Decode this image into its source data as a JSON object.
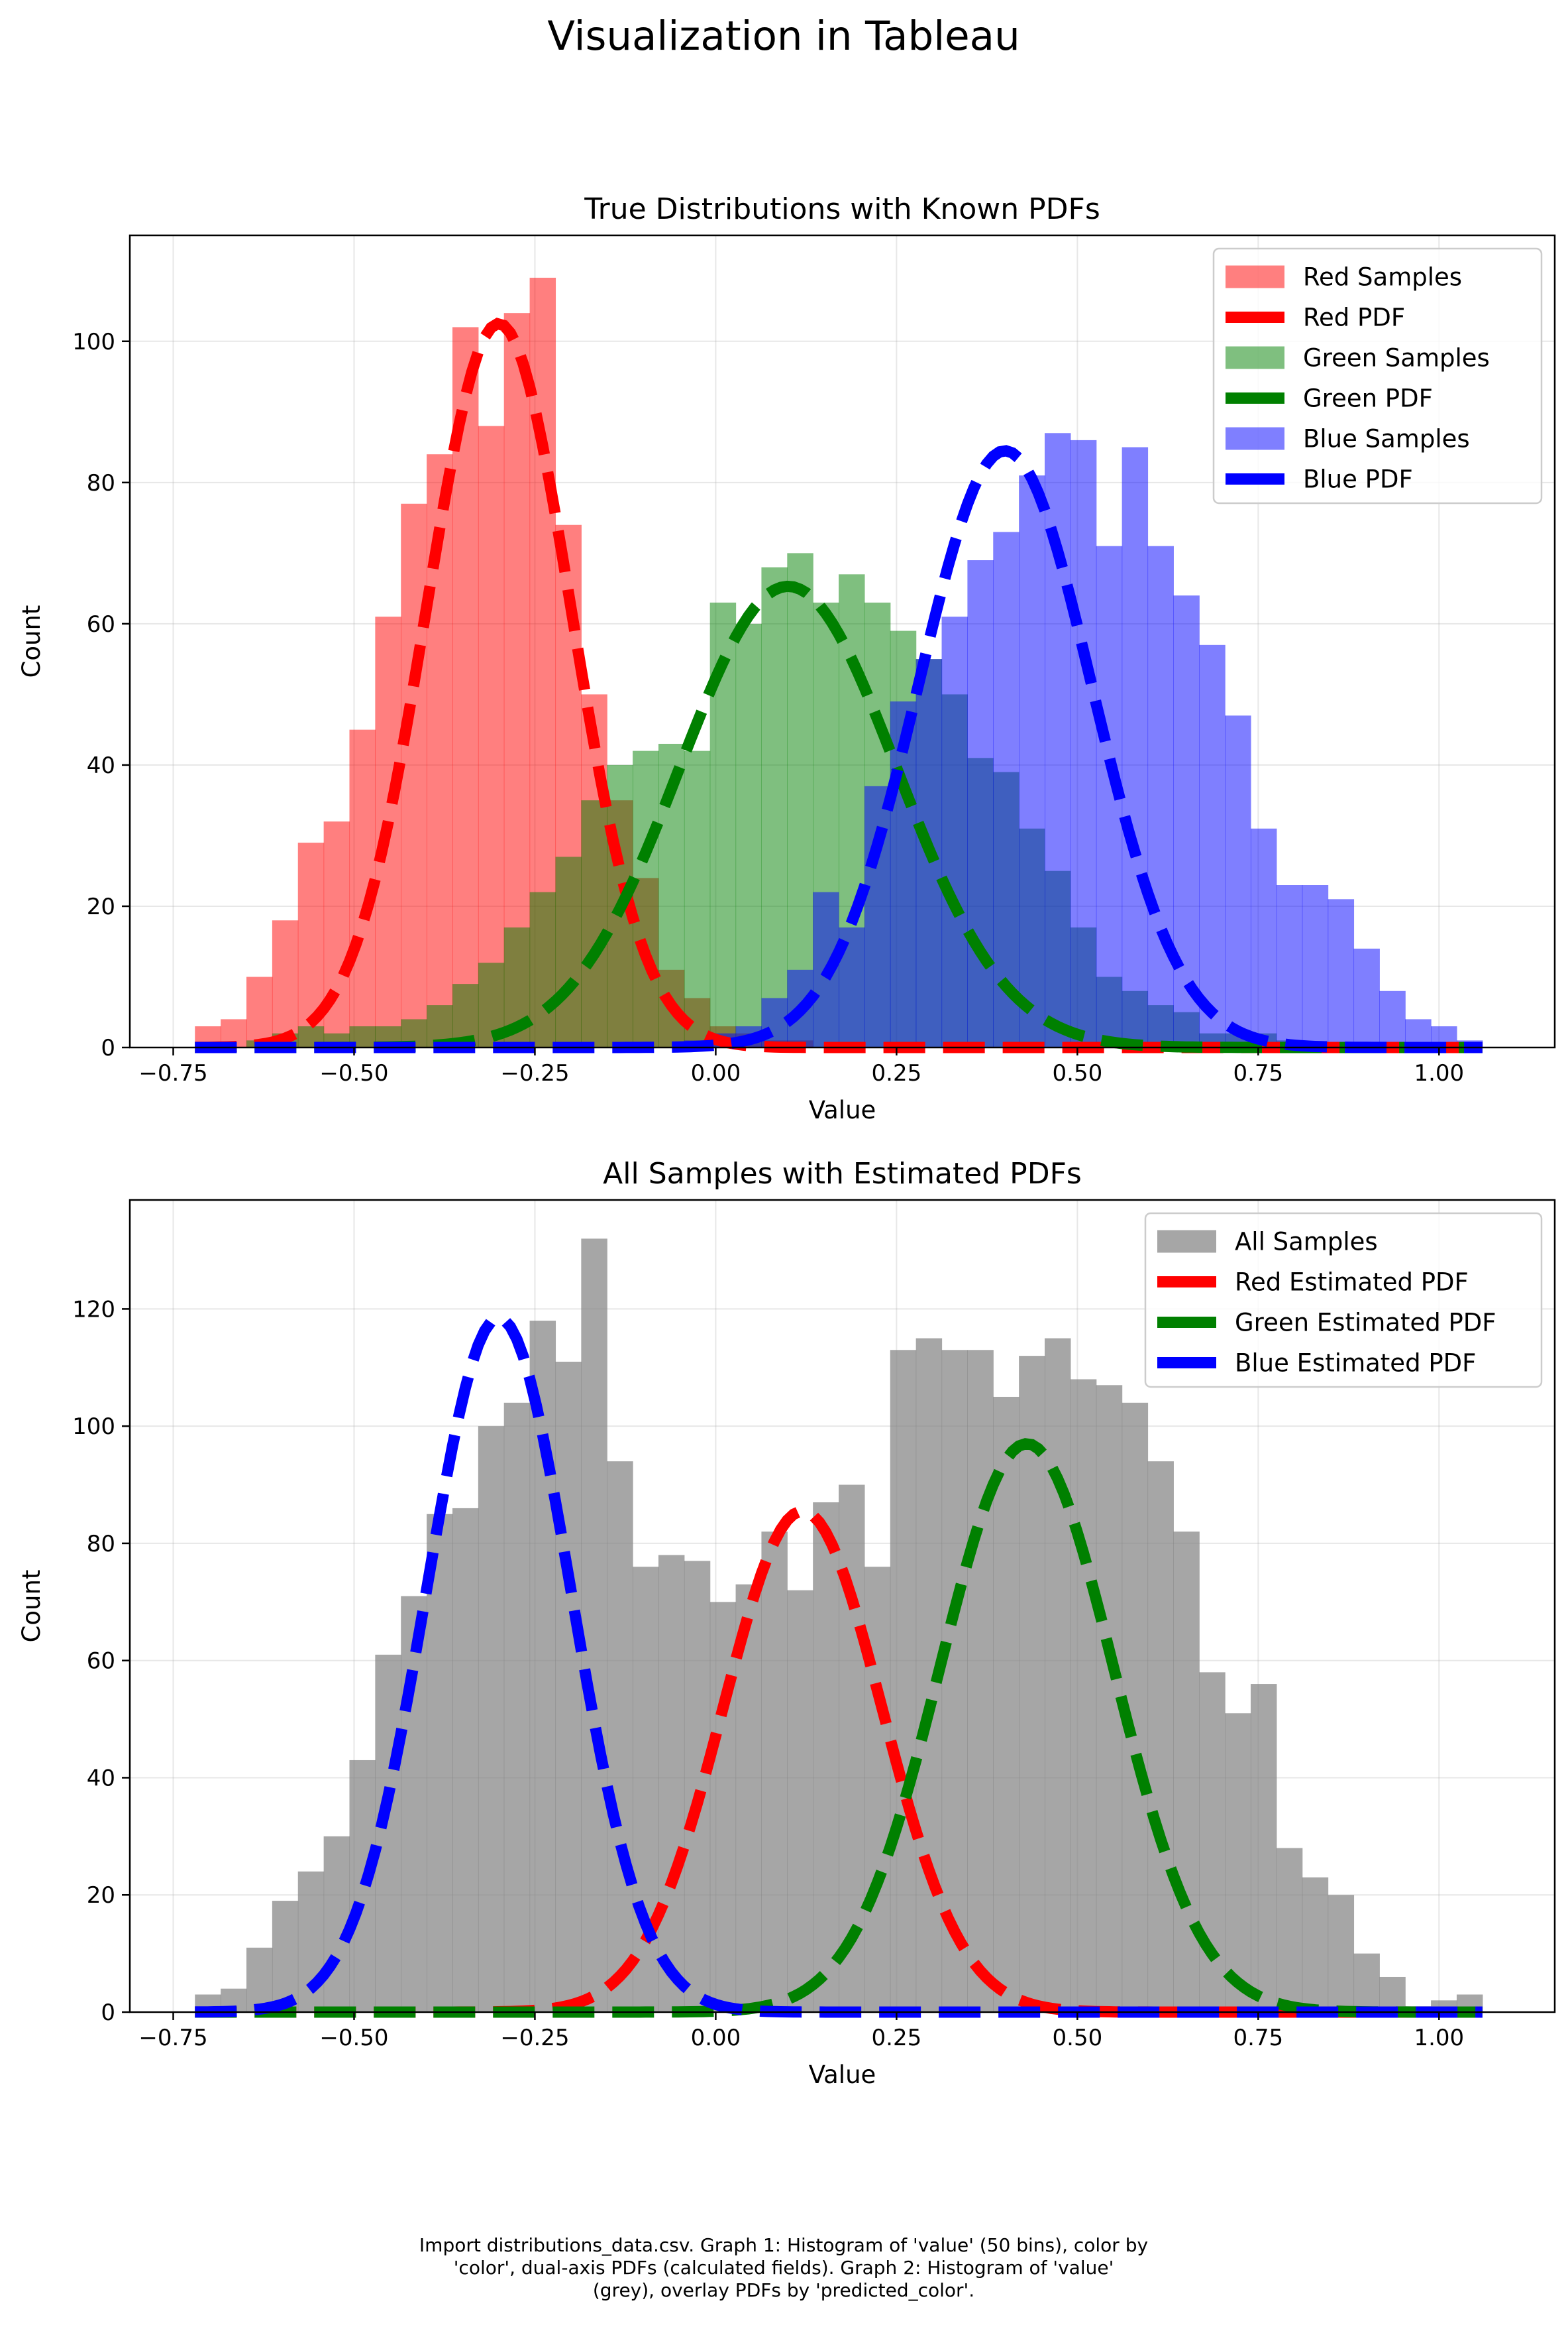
{
  "figure": {
    "title": "Visualization in Tableau",
    "footnote_lines": [
      "Import distributions_data.csv. Graph 1: Histogram of 'value' (50 bins), color by",
      "'color', dual-axis PDFs (calculated fields). Graph 2: Histogram of 'value'",
      "(grey), overlay PDFs by 'predicted_color'."
    ]
  },
  "chart_data": [
    {
      "type": "bar",
      "title": "True Distributions with Known PDFs",
      "xlabel": "Value",
      "ylabel": "Count",
      "xlim": [
        -0.81,
        1.16
      ],
      "ylim": [
        0,
        115
      ],
      "xticks": [
        -0.75,
        -0.5,
        -0.25,
        0.0,
        0.25,
        0.5,
        0.75,
        1.0
      ],
      "xtick_labels": [
        "−0.75",
        "−0.50",
        "−0.25",
        "0.00",
        "0.25",
        "0.50",
        "0.75",
        "1.00"
      ],
      "yticks": [
        0,
        20,
        40,
        60,
        80,
        100
      ],
      "ytick_labels": [
        "0",
        "20",
        "40",
        "60",
        "80",
        "100"
      ],
      "grid": true,
      "legend_position": "top-right",
      "bin_start": -0.72,
      "bin_width": 0.0356,
      "histograms": [
        {
          "name": "Red Samples",
          "color": "#ff0000",
          "opacity": 0.5,
          "counts": [
            3,
            4,
            10,
            18,
            29,
            32,
            45,
            61,
            77,
            84,
            102,
            88,
            104,
            109,
            74,
            50,
            35,
            24,
            11,
            7,
            3,
            2,
            1,
            1,
            0,
            0,
            0,
            0,
            0,
            0,
            0,
            0,
            0,
            0,
            0,
            0,
            0,
            0,
            0,
            0,
            0,
            0,
            0,
            0,
            0,
            0,
            0,
            0,
            0,
            0
          ]
        },
        {
          "name": "Green Samples",
          "color": "#008000",
          "opacity": 0.5,
          "counts": [
            0,
            0,
            1,
            2,
            3,
            2,
            3,
            3,
            4,
            6,
            9,
            12,
            17,
            22,
            27,
            35,
            40,
            42,
            43,
            42,
            63,
            60,
            68,
            70,
            63,
            67,
            63,
            59,
            55,
            50,
            41,
            39,
            31,
            25,
            17,
            10,
            8,
            6,
            5,
            2,
            2,
            2,
            1,
            0,
            0,
            0,
            0,
            0,
            0,
            0
          ]
        },
        {
          "name": "Blue Samples",
          "color": "#0000ff",
          "opacity": 0.5,
          "counts": [
            0,
            0,
            0,
            0,
            0,
            0,
            0,
            0,
            0,
            0,
            0,
            0,
            0,
            0,
            0,
            0,
            0,
            0,
            0,
            1,
            2,
            3,
            7,
            11,
            22,
            17,
            37,
            49,
            55,
            61,
            69,
            73,
            81,
            87,
            86,
            71,
            85,
            71,
            64,
            57,
            47,
            31,
            23,
            23,
            21,
            14,
            8,
            4,
            3,
            1
          ]
        }
      ],
      "pdfs": [
        {
          "name": "Red PDF",
          "color": "#ff0000",
          "mean": -0.3,
          "sd": 0.1,
          "peak": 102.5
        },
        {
          "name": "Green PDF",
          "color": "#008000",
          "mean": 0.1,
          "sd": 0.15,
          "peak": 65.3
        },
        {
          "name": "Blue PDF",
          "color": "#0000ff",
          "mean": 0.4,
          "sd": 0.12,
          "peak": 84.5
        }
      ],
      "pdf_x_range": [
        -0.72,
        1.06
      ],
      "legend": [
        "Red Samples",
        "Red PDF",
        "Green Samples",
        "Green PDF",
        "Blue Samples",
        "Blue PDF"
      ]
    },
    {
      "type": "bar",
      "title": "All Samples with Estimated PDFs",
      "xlabel": "Value",
      "ylabel": "Count",
      "xlim": [
        -0.81,
        1.16
      ],
      "ylim": [
        0,
        138.6
      ],
      "xticks": [
        -0.75,
        -0.5,
        -0.25,
        0.0,
        0.25,
        0.5,
        0.75,
        1.0
      ],
      "xtick_labels": [
        "−0.75",
        "−0.50",
        "−0.25",
        "0.00",
        "0.25",
        "0.50",
        "0.75",
        "1.00"
      ],
      "yticks": [
        0,
        20,
        40,
        60,
        80,
        100,
        120
      ],
      "ytick_labels": [
        "0",
        "20",
        "40",
        "60",
        "80",
        "100",
        "120"
      ],
      "grid": true,
      "legend_position": "top-right",
      "bin_start": -0.72,
      "bin_width": 0.0356,
      "histograms": [
        {
          "name": "All Samples",
          "color": "#808080",
          "opacity": 0.7,
          "counts": [
            3,
            4,
            11,
            19,
            24,
            30,
            43,
            61,
            71,
            85,
            86,
            100,
            104,
            118,
            111,
            132,
            94,
            76,
            78,
            77,
            70,
            73,
            82,
            72,
            87,
            90,
            76,
            113,
            115,
            113,
            113,
            105,
            112,
            115,
            108,
            107,
            104,
            94,
            82,
            58,
            51,
            56,
            28,
            23,
            20,
            10,
            6,
            1,
            2,
            3
          ]
        }
      ],
      "pdfs": [
        {
          "name": "Red Estimated PDF",
          "color": "#ff0000",
          "mean": 0.12,
          "sd": 0.11,
          "peak": 85.5
        },
        {
          "name": "Green Estimated PDF",
          "color": "#008000",
          "mean": 0.43,
          "sd": 0.12,
          "peak": 97.0
        },
        {
          "name": "Blue Estimated PDF",
          "color": "#0000ff",
          "mean": -0.3,
          "sd": 0.1,
          "peak": 118.5
        }
      ],
      "pdf_x_range": [
        -0.72,
        1.06
      ],
      "legend": [
        "All Samples",
        "Red Estimated PDF",
        "Green Estimated PDF",
        "Blue Estimated PDF"
      ]
    }
  ]
}
